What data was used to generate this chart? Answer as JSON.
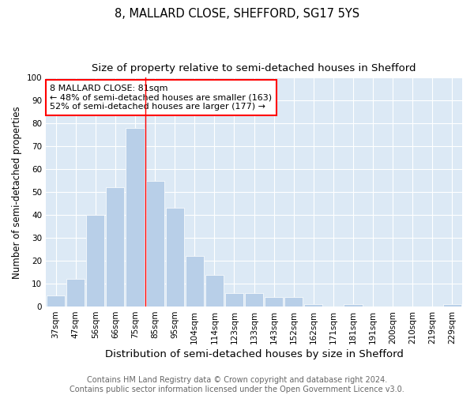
{
  "title": "8, MALLARD CLOSE, SHEFFORD, SG17 5YS",
  "subtitle": "Size of property relative to semi-detached houses in Shefford",
  "xlabel": "Distribution of semi-detached houses by size in Shefford",
  "ylabel": "Number of semi-detached properties",
  "categories": [
    "37sqm",
    "47sqm",
    "56sqm",
    "66sqm",
    "75sqm",
    "85sqm",
    "95sqm",
    "104sqm",
    "114sqm",
    "123sqm",
    "133sqm",
    "143sqm",
    "152sqm",
    "162sqm",
    "171sqm",
    "181sqm",
    "191sqm",
    "200sqm",
    "210sqm",
    "219sqm",
    "229sqm"
  ],
  "values": [
    5,
    12,
    40,
    52,
    78,
    55,
    43,
    22,
    14,
    6,
    6,
    4,
    4,
    1,
    0,
    1,
    0,
    0,
    0,
    0,
    1
  ],
  "bar_color": "#b8cfe8",
  "bar_edge_color": "#ffffff",
  "vline_x": 4.5,
  "vline_color": "red",
  "annotation_text": "8 MALLARD CLOSE: 81sqm\n← 48% of semi-detached houses are smaller (163)\n52% of semi-detached houses are larger (177) →",
  "annotation_box_facecolor": "white",
  "annotation_box_edgecolor": "red",
  "ylim": [
    0,
    100
  ],
  "yticks": [
    0,
    10,
    20,
    30,
    40,
    50,
    60,
    70,
    80,
    90,
    100
  ],
  "footnote": "Contains HM Land Registry data © Crown copyright and database right 2024.\nContains public sector information licensed under the Open Government Licence v3.0.",
  "fig_background_color": "#ffffff",
  "plot_background_color": "#dce9f5",
  "title_fontsize": 10.5,
  "subtitle_fontsize": 9.5,
  "xlabel_fontsize": 9.5,
  "ylabel_fontsize": 8.5,
  "tick_fontsize": 7.5,
  "footnote_fontsize": 7,
  "annotation_fontsize": 8
}
